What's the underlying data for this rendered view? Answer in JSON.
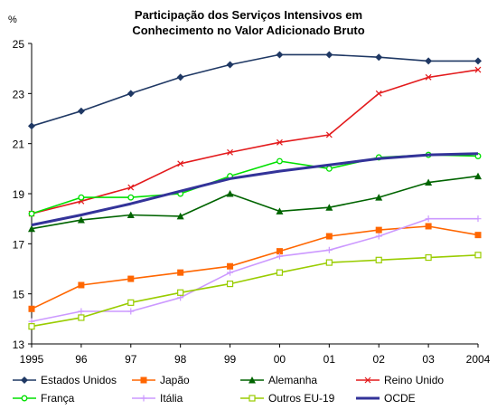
{
  "chart_data": {
    "type": "line",
    "title_lines": [
      "Participação dos Serviços Intensivos em",
      "Conhecimento no Valor Adicionado Bruto"
    ],
    "ylabel": "%",
    "xlabel": "",
    "x": [
      "1995",
      "96",
      "97",
      "98",
      "99",
      "00",
      "01",
      "02",
      "03",
      "2004"
    ],
    "ylim": [
      13,
      25
    ],
    "yticks": [
      13,
      15,
      17,
      19,
      21,
      23,
      25
    ],
    "grid": false,
    "legend": "bottom",
    "series": [
      {
        "name": "Estados Unidos",
        "color": "#1F3864",
        "marker": "diamond",
        "values": [
          21.7,
          22.3,
          23.0,
          23.65,
          24.15,
          24.55,
          24.55,
          24.45,
          24.3,
          24.3
        ]
      },
      {
        "name": "Japão",
        "color": "#FF6600",
        "marker": "square",
        "values": [
          14.4,
          15.35,
          15.6,
          15.85,
          16.1,
          16.7,
          17.3,
          17.55,
          17.7,
          17.35
        ]
      },
      {
        "name": "Alemanha",
        "color": "#006400",
        "marker": "triangle",
        "values": [
          17.6,
          17.95,
          18.15,
          18.1,
          19.0,
          18.3,
          18.45,
          18.85,
          19.45,
          19.7
        ]
      },
      {
        "name": "Reino Unido",
        "color": "#E31A1C",
        "marker": "x",
        "values": [
          18.2,
          18.7,
          19.25,
          20.2,
          20.65,
          21.05,
          21.35,
          23.0,
          23.65,
          23.95
        ]
      },
      {
        "name": "França",
        "color": "#00E000",
        "marker": "circle",
        "values": [
          18.2,
          18.85,
          18.85,
          19.0,
          19.7,
          20.3,
          20.0,
          20.45,
          20.55,
          20.5
        ]
      },
      {
        "name": "Itália",
        "color": "#CC99FF",
        "marker": "plus",
        "values": [
          13.9,
          14.3,
          14.3,
          14.85,
          15.85,
          16.5,
          16.75,
          17.3,
          18.0,
          18.0
        ]
      },
      {
        "name": "Outros EU-19",
        "color": "#99CC00",
        "marker": "hollow-square",
        "values": [
          13.7,
          14.05,
          14.65,
          15.05,
          15.4,
          15.85,
          16.25,
          16.35,
          16.45,
          16.55
        ]
      },
      {
        "name": "OCDE",
        "color": "#333399",
        "marker": "none",
        "bold": true,
        "values": [
          17.75,
          18.15,
          18.6,
          19.1,
          19.6,
          19.9,
          20.15,
          20.4,
          20.55,
          20.6
        ]
      }
    ]
  }
}
